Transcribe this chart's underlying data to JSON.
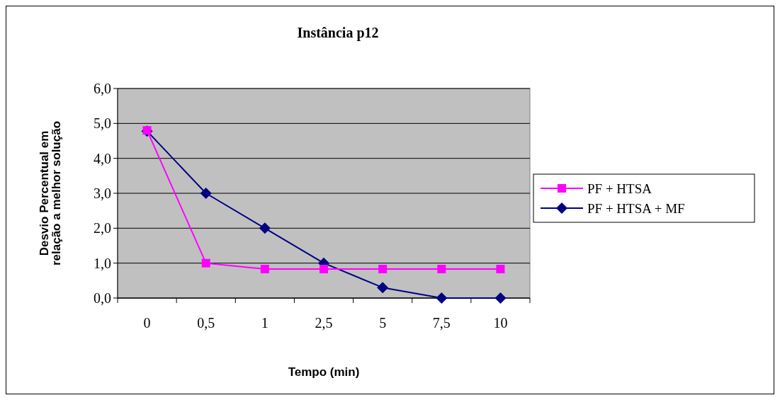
{
  "chart_data": {
    "type": "line",
    "title": "Instância p12",
    "xlabel": "Tempo (min)",
    "ylabel": "Desvio Percentual em relação a melhor solução",
    "categories": [
      "0",
      "0,5",
      "1",
      "2,5",
      "5",
      "7,5",
      "10"
    ],
    "series": [
      {
        "name": "PF + HTSA",
        "color": "#ff00ff",
        "marker": "square",
        "values": [
          4.8,
          1.0,
          0.83,
          0.83,
          0.83,
          0.83,
          0.83
        ]
      },
      {
        "name": "PF + HTSA + MF",
        "color": "#000080",
        "marker": "diamond",
        "values": [
          4.78,
          3.0,
          2.0,
          1.0,
          0.3,
          0.0,
          0.0
        ]
      }
    ],
    "ylim": [
      0,
      6
    ],
    "yticks": [
      {
        "value": 0,
        "label": "0,0"
      },
      {
        "value": 1,
        "label": "1,0"
      },
      {
        "value": 2,
        "label": "2,0"
      },
      {
        "value": 3,
        "label": "3,0"
      },
      {
        "value": 4,
        "label": "4,0"
      },
      {
        "value": 5,
        "label": "5,0"
      },
      {
        "value": 6,
        "label": "6,0"
      }
    ],
    "grid": "y",
    "legend": "right",
    "line_style": "solid"
  }
}
